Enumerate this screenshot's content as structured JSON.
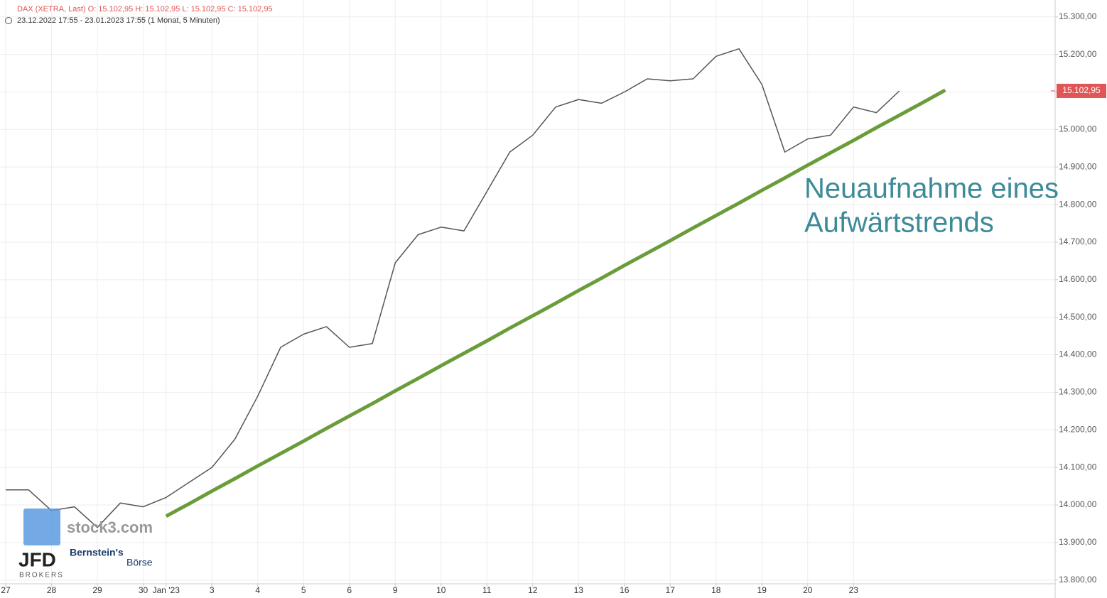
{
  "chart_data": {
    "type": "line",
    "title": "DAX (XETRA, Last)  O: 15.102,95  H: 15.102,95  L: 15.102,95  C: 15.102,95",
    "subtitle": "23.12.2022 17:55 - 23.01.2023 17:55  (1 Monat, 5 Minuten)",
    "categories": [
      "27",
      null,
      "28",
      null,
      "29",
      null,
      "30",
      "Jan '23",
      null,
      "3",
      null,
      "4",
      null,
      "5",
      null,
      "6",
      null,
      "9",
      null,
      "10",
      null,
      "11",
      null,
      "12",
      null,
      "13",
      null,
      "16",
      null,
      "17",
      null,
      "18",
      null,
      "19",
      null,
      "20",
      null,
      "23",
      null,
      null,
      null,
      null
    ],
    "values": [
      14040,
      14040,
      13985,
      13995,
      13940,
      14005,
      13995,
      14020,
      14060,
      14100,
      14175,
      14290,
      14420,
      14455,
      14475,
      14420,
      14430,
      14645,
      14720,
      14740,
      14730,
      14835,
      14940,
      14985,
      15060,
      15080,
      15070,
      15100,
      15135,
      15130,
      15135,
      15195,
      15215,
      15120,
      14940,
      14975,
      14985,
      15060,
      15045,
      15102.95,
      null,
      null
    ],
    "color": "#555555",
    "trend_values": [
      null,
      null,
      null,
      null,
      null,
      null,
      null,
      13970,
      14003,
      14037,
      14070,
      14104,
      14137,
      14170,
      14204,
      14237,
      14270,
      14304,
      14337,
      14371,
      14404,
      14437,
      14471,
      14504,
      14537,
      14571,
      14604,
      14638,
      14671,
      14704,
      14738,
      14771,
      14804,
      14838,
      14871,
      14905,
      14938,
      14971,
      15005,
      15038,
      15071,
      15105
    ],
    "trend_color": "#6a9c3a",
    "last_value": 15102.95,
    "last_value_label": "15.102,95",
    "annotation": [
      "Neuaufnahme eines",
      "Aufwärtstrends"
    ],
    "ylim": [
      13790,
      15345
    ],
    "yticks": [
      {
        "value": 13800,
        "label": "13.800,00"
      },
      {
        "value": 13900,
        "label": "13.900,00"
      },
      {
        "value": 14000,
        "label": "14.000,00"
      },
      {
        "value": 14100,
        "label": "14.100,00"
      },
      {
        "value": 14200,
        "label": "14.200,00"
      },
      {
        "value": 14300,
        "label": "14.300,00"
      },
      {
        "value": 14400,
        "label": "14.400,00"
      },
      {
        "value": 14500,
        "label": "14.500,00"
      },
      {
        "value": 14600,
        "label": "14.600,00"
      },
      {
        "value": 14700,
        "label": "14.700,00"
      },
      {
        "value": 14800,
        "label": "14.800,00"
      },
      {
        "value": 14900,
        "label": "14.900,00"
      },
      {
        "value": 15000,
        "label": "15.000,00"
      },
      {
        "value": 15100,
        "label": "15.100,00"
      },
      {
        "value": 15200,
        "label": "15.200,00"
      },
      {
        "value": 15300,
        "label": "15.300,00"
      }
    ],
    "grid": true
  },
  "logos": {
    "stock3": "stock3.com",
    "jfd": "JFD",
    "jfd_sub": "BROKERS",
    "bernstein": "Bernstein's",
    "boerse": "Börse"
  }
}
